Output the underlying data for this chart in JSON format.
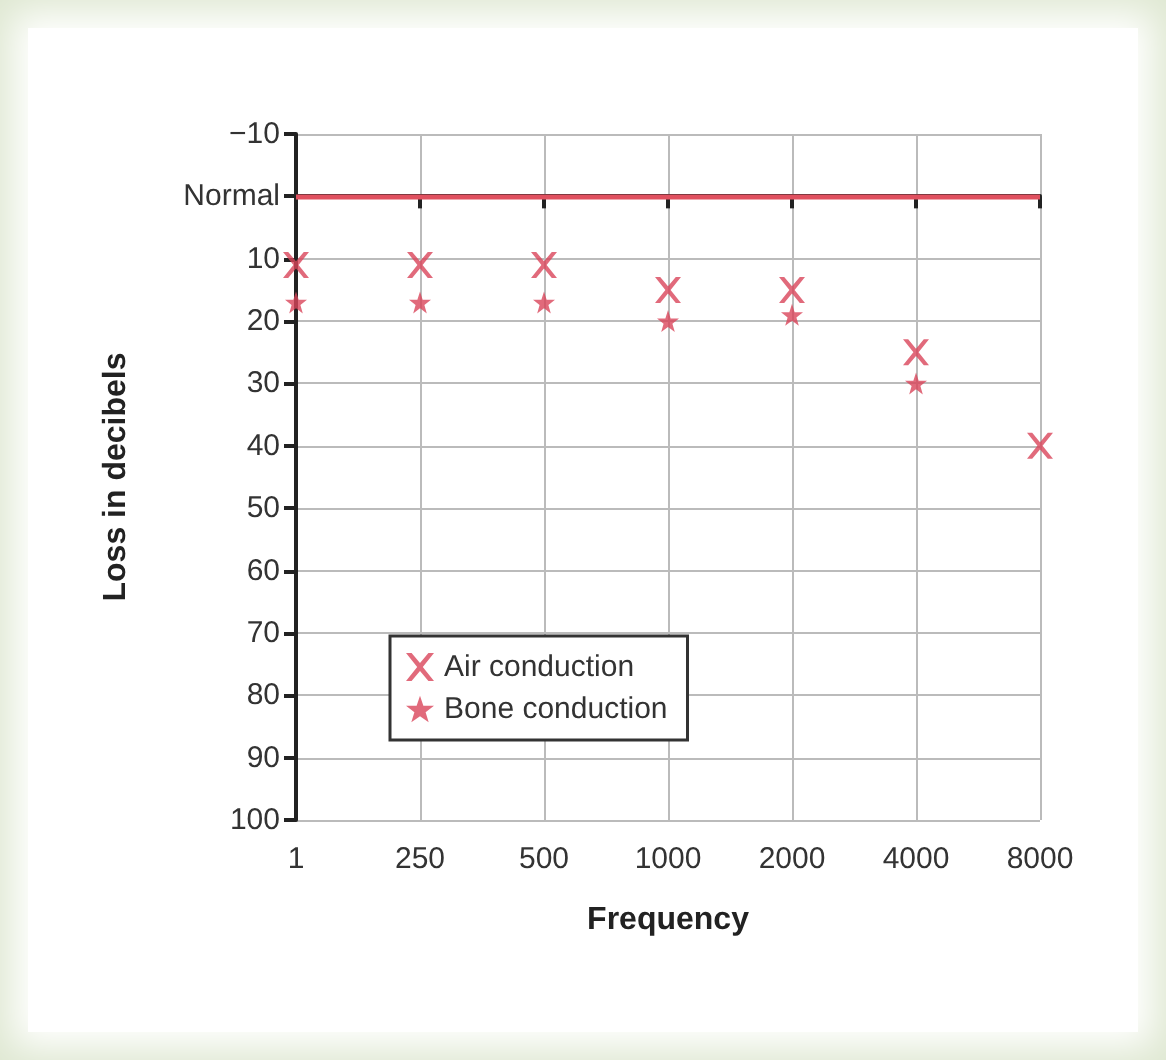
{
  "chart_data": {
    "type": "scatter",
    "xlabel": "Frequency",
    "ylabel": "Loss in decibels",
    "categories": [
      "1",
      "250",
      "500",
      "1000",
      "2000",
      "4000",
      "8000"
    ],
    "series": [
      {
        "name": "Air conduction",
        "color": "#d9455a",
        "marker": "cross",
        "values": [
          11,
          11,
          11,
          15,
          15,
          25,
          40
        ]
      },
      {
        "name": "Bone conduction",
        "color": "#d9455a",
        "marker": "star",
        "values": [
          17,
          17,
          17,
          20,
          19,
          30,
          null
        ]
      }
    ],
    "ylim": [
      100,
      -10
    ],
    "yticks": [
      -10,
      {
        "value": 0,
        "label": "Normal"
      },
      10,
      20,
      30,
      40,
      50,
      60,
      70,
      80,
      90,
      100
    ],
    "ref_lines": [
      {
        "axis": "y",
        "value": 0,
        "color": "#e0505f",
        "line_style": "solid"
      }
    ],
    "grid": true,
    "legend": "bottom left"
  }
}
